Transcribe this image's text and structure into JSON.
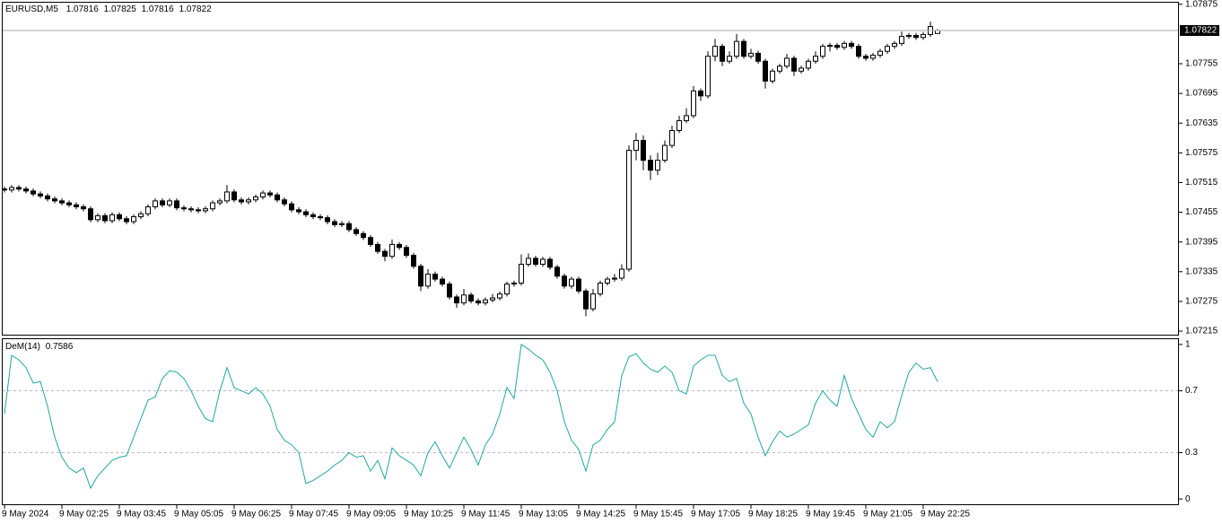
{
  "chart_data": [
    {
      "type": "candlestick",
      "title": "EURUSD,M5",
      "categories": [
        "9 May 2024",
        null,
        null,
        null,
        null,
        null,
        null,
        null,
        "9 May 02:25",
        null,
        null,
        null,
        null,
        null,
        null,
        null,
        "9 May 03:45",
        null,
        null,
        null,
        null,
        null,
        null,
        null,
        "9 May 05:05",
        null,
        null,
        null,
        null,
        null,
        null,
        null,
        "9 May 06:25",
        null,
        null,
        null,
        null,
        null,
        null,
        null,
        "9 May 07:45",
        null,
        null,
        null,
        null,
        null,
        null,
        null,
        "9 May 09:05",
        null,
        null,
        null,
        null,
        null,
        null,
        null,
        "9 May 10:25",
        null,
        null,
        null,
        null,
        null,
        null,
        null,
        "9 May 11:45",
        null,
        null,
        null,
        null,
        null,
        null,
        null,
        "9 May 13:05",
        null,
        null,
        null,
        null,
        null,
        null,
        null,
        "9 May 14:25",
        null,
        null,
        null,
        null,
        null,
        null,
        null,
        "9 May 15:45",
        null,
        null,
        null,
        null,
        null,
        null,
        null,
        "9 May 17:05",
        null,
        null,
        null,
        null,
        null,
        null,
        null,
        "9 May 18:25",
        null,
        null,
        null,
        null,
        null,
        null,
        null,
        "9 May 19:45",
        null,
        null,
        null,
        null,
        null,
        null,
        null,
        "9 May 21:05",
        null,
        null,
        null,
        null,
        null,
        null,
        null,
        "9 May 22:25",
        null,
        null
      ],
      "open": [
        1.07502,
        1.075,
        1.07505,
        1.07502,
        1.07498,
        1.07492,
        1.07488,
        1.07482,
        1.07478,
        1.07474,
        1.0747,
        1.07466,
        1.07462,
        1.0744,
        1.07448,
        1.07438,
        1.0745,
        1.07442,
        1.07436,
        1.07446,
        1.07452,
        1.07466,
        1.07478,
        1.0747,
        1.07478,
        1.07464,
        1.07462,
        1.0746,
        1.07458,
        1.07462,
        1.07474,
        1.07478,
        1.07496,
        1.0748,
        1.07476,
        1.0748,
        1.07486,
        1.07494,
        1.0749,
        1.0748,
        1.07472,
        1.0746,
        1.07456,
        1.0745,
        1.07446,
        1.07444,
        1.07436,
        1.0743,
        1.07432,
        1.0742,
        1.07412,
        1.07404,
        1.0739,
        1.07376,
        1.07366,
        1.0739,
        1.07384,
        1.07368,
        1.07346,
        1.07306,
        1.0733,
        1.0732,
        1.0731,
        1.07284,
        1.07272,
        1.07288,
        1.07276,
        1.07272,
        1.07278,
        1.07282,
        1.0729,
        1.0731,
        1.07312,
        1.0735,
        1.07362,
        1.0735,
        1.0736,
        1.07344,
        1.07326,
        1.07306,
        1.0732,
        1.07296,
        1.0726,
        1.0729,
        1.07312,
        1.0732,
        1.07322,
        1.0734,
        1.0758,
        1.076,
        1.0756,
        1.0754,
        1.0756,
        1.0759,
        1.0762,
        1.0764,
        1.0765,
        1.077,
        1.0769,
        1.0777,
        1.0779,
        1.0776,
        1.0777,
        1.078,
        1.0777,
        1.07776,
        1.0776,
        1.0772,
        1.0774,
        1.0775,
        1.07766,
        1.0774,
        1.07746,
        1.0776,
        1.0777,
        1.0779,
        1.07792,
        1.07788,
        1.07796,
        1.0779,
        1.0777,
        1.07766,
        1.07772,
        1.0778,
        1.0779,
        1.07796,
        1.0781,
        1.07812,
        1.07808,
        1.07814,
        1.07816
      ],
      "high": [
        1.07507,
        1.0751,
        1.0751,
        1.07507,
        1.07503,
        1.07497,
        1.07493,
        1.07487,
        1.07483,
        1.07479,
        1.07475,
        1.07471,
        1.07467,
        1.07453,
        1.07453,
        1.07455,
        1.07455,
        1.07447,
        1.07451,
        1.07457,
        1.07471,
        1.07483,
        1.07483,
        1.07483,
        1.07483,
        1.07469,
        1.07467,
        1.07465,
        1.07467,
        1.07479,
        1.07483,
        1.0751,
        1.07501,
        1.07485,
        1.07485,
        1.07491,
        1.07499,
        1.07499,
        1.07495,
        1.07485,
        1.07477,
        1.07465,
        1.07461,
        1.07455,
        1.07451,
        1.07449,
        1.07441,
        1.07437,
        1.07437,
        1.07425,
        1.07417,
        1.07409,
        1.07395,
        1.07381,
        1.074,
        1.07395,
        1.07389,
        1.07373,
        1.07351,
        1.0734,
        1.07335,
        1.07325,
        1.07315,
        1.07289,
        1.073,
        1.07293,
        1.07281,
        1.07283,
        1.0729,
        1.07295,
        1.07315,
        1.07317,
        1.0737,
        1.07372,
        1.07367,
        1.07365,
        1.07365,
        1.07349,
        1.07331,
        1.07325,
        1.07325,
        1.07301,
        1.073,
        1.07317,
        1.07325,
        1.0733,
        1.0735,
        1.0759,
        1.07615,
        1.0761,
        1.0757,
        1.07575,
        1.076,
        1.0763,
        1.0765,
        1.07665,
        1.0771,
        1.07705,
        1.0778,
        1.07805,
        1.07795,
        1.0778,
        1.07815,
        1.07805,
        1.07785,
        1.07781,
        1.07765,
        1.07745,
        1.07755,
        1.07775,
        1.07771,
        1.07751,
        1.07765,
        1.0778,
        1.07795,
        1.07797,
        1.07797,
        1.07801,
        1.07801,
        1.07795,
        1.07775,
        1.07777,
        1.07785,
        1.07795,
        1.07801,
        1.0782,
        1.07817,
        1.07817,
        1.07819,
        1.0784,
        1.07825
      ],
      "low": [
        1.07495,
        1.07495,
        1.07497,
        1.07493,
        1.07487,
        1.07483,
        1.07477,
        1.07473,
        1.07469,
        1.07465,
        1.07461,
        1.07457,
        1.07435,
        1.07435,
        1.07433,
        1.07433,
        1.07437,
        1.07431,
        1.07431,
        1.07441,
        1.07447,
        1.07461,
        1.07465,
        1.07465,
        1.07459,
        1.07457,
        1.07455,
        1.07453,
        1.07453,
        1.07457,
        1.07469,
        1.07473,
        1.07475,
        1.07471,
        1.07471,
        1.07475,
        1.07481,
        1.07485,
        1.07475,
        1.07467,
        1.07455,
        1.07451,
        1.07445,
        1.07441,
        1.07439,
        1.07431,
        1.07425,
        1.07425,
        1.07415,
        1.07407,
        1.07399,
        1.07385,
        1.07371,
        1.07356,
        1.07361,
        1.07379,
        1.07363,
        1.07341,
        1.07296,
        1.07301,
        1.07315,
        1.07305,
        1.07279,
        1.07262,
        1.07267,
        1.07271,
        1.07267,
        1.07267,
        1.07273,
        1.07277,
        1.07285,
        1.07305,
        1.07307,
        1.07345,
        1.07345,
        1.07345,
        1.07339,
        1.07321,
        1.07301,
        1.07301,
        1.07291,
        1.07245,
        1.07255,
        1.07285,
        1.07307,
        1.07315,
        1.07317,
        1.07335,
        1.0756,
        1.0754,
        1.0752,
        1.0753,
        1.07555,
        1.07585,
        1.07615,
        1.07635,
        1.07645,
        1.0768,
        1.07685,
        1.0776,
        1.0775,
        1.07755,
        1.07765,
        1.07765,
        1.07765,
        1.07755,
        1.07705,
        1.07715,
        1.07735,
        1.07745,
        1.0773,
        1.07735,
        1.07741,
        1.07755,
        1.07765,
        1.0778,
        1.07783,
        1.07783,
        1.07785,
        1.07765,
        1.07761,
        1.07761,
        1.07767,
        1.07775,
        1.07785,
        1.07791,
        1.07805,
        1.07803,
        1.07803,
        1.07809,
        1.07816
      ],
      "close": [
        1.075,
        1.07505,
        1.07502,
        1.07498,
        1.07492,
        1.07488,
        1.07482,
        1.07478,
        1.07474,
        1.0747,
        1.07466,
        1.07462,
        1.0744,
        1.07448,
        1.07438,
        1.0745,
        1.07442,
        1.07436,
        1.07446,
        1.07452,
        1.07466,
        1.07478,
        1.0747,
        1.07478,
        1.07464,
        1.07462,
        1.0746,
        1.07458,
        1.07462,
        1.07474,
        1.07478,
        1.07496,
        1.0748,
        1.07476,
        1.0748,
        1.07486,
        1.07494,
        1.0749,
        1.0748,
        1.07472,
        1.0746,
        1.07456,
        1.0745,
        1.07446,
        1.07444,
        1.07436,
        1.0743,
        1.07432,
        1.0742,
        1.07412,
        1.07404,
        1.0739,
        1.07376,
        1.07366,
        1.0739,
        1.07384,
        1.07368,
        1.07346,
        1.07306,
        1.0733,
        1.0732,
        1.0731,
        1.07284,
        1.07272,
        1.07288,
        1.07276,
        1.07272,
        1.07278,
        1.07282,
        1.0729,
        1.0731,
        1.07312,
        1.0735,
        1.07362,
        1.0735,
        1.0736,
        1.07344,
        1.07326,
        1.07306,
        1.0732,
        1.07296,
        1.0726,
        1.0729,
        1.07312,
        1.0732,
        1.07322,
        1.0734,
        1.0758,
        1.076,
        1.0756,
        1.0754,
        1.0756,
        1.0759,
        1.0762,
        1.0764,
        1.0765,
        1.077,
        1.0769,
        1.0777,
        1.0779,
        1.0776,
        1.0777,
        1.078,
        1.0777,
        1.07776,
        1.0776,
        1.0772,
        1.0774,
        1.0775,
        1.07766,
        1.0774,
        1.07746,
        1.0776,
        1.0777,
        1.0779,
        1.07792,
        1.07788,
        1.07796,
        1.0779,
        1.0777,
        1.07766,
        1.07772,
        1.0778,
        1.0779,
        1.07796,
        1.0781,
        1.07812,
        1.07808,
        1.07814,
        1.0783,
        1.07822
      ],
      "ylim": [
        1.07206,
        1.0788
      ],
      "yticks": [
        1.07215,
        1.07275,
        1.07335,
        1.07395,
        1.07455,
        1.07515,
        1.07575,
        1.07635,
        1.07695,
        1.07755,
        1.07875
      ],
      "grid": false
    },
    {
      "type": "line",
      "title": "DeM(14)",
      "series": [
        {
          "name": "DeM(14)",
          "color": "#20a8a0",
          "values": [
            0.55,
            0.93,
            0.9,
            0.85,
            0.75,
            0.76,
            0.6,
            0.4,
            0.27,
            0.2,
            0.17,
            0.2,
            0.07,
            0.15,
            0.2,
            0.25,
            0.27,
            0.28,
            0.4,
            0.52,
            0.64,
            0.66,
            0.78,
            0.83,
            0.82,
            0.78,
            0.7,
            0.6,
            0.52,
            0.5,
            0.7,
            0.85,
            0.72,
            0.7,
            0.68,
            0.72,
            0.68,
            0.6,
            0.45,
            0.38,
            0.35,
            0.3,
            0.1,
            0.12,
            0.15,
            0.18,
            0.22,
            0.25,
            0.3,
            0.27,
            0.28,
            0.18,
            0.25,
            0.13,
            0.33,
            0.28,
            0.25,
            0.22,
            0.15,
            0.3,
            0.37,
            0.28,
            0.2,
            0.3,
            0.4,
            0.32,
            0.22,
            0.35,
            0.42,
            0.55,
            0.72,
            0.65,
            1.0,
            0.97,
            0.93,
            0.9,
            0.82,
            0.7,
            0.5,
            0.38,
            0.32,
            0.18,
            0.35,
            0.38,
            0.45,
            0.5,
            0.8,
            0.92,
            0.94,
            0.88,
            0.84,
            0.82,
            0.86,
            0.82,
            0.7,
            0.68,
            0.86,
            0.9,
            0.93,
            0.93,
            0.8,
            0.76,
            0.78,
            0.62,
            0.55,
            0.4,
            0.28,
            0.37,
            0.44,
            0.4,
            0.42,
            0.45,
            0.48,
            0.62,
            0.7,
            0.64,
            0.6,
            0.8,
            0.65,
            0.55,
            0.45,
            0.4,
            0.5,
            0.46,
            0.5,
            0.67,
            0.82,
            0.88,
            0.84,
            0.85,
            0.7586
          ]
        }
      ],
      "ylim": [
        -0.04,
        1.04
      ],
      "yticks": [
        0,
        0.3,
        0.7,
        1
      ]
    }
  ]
}
